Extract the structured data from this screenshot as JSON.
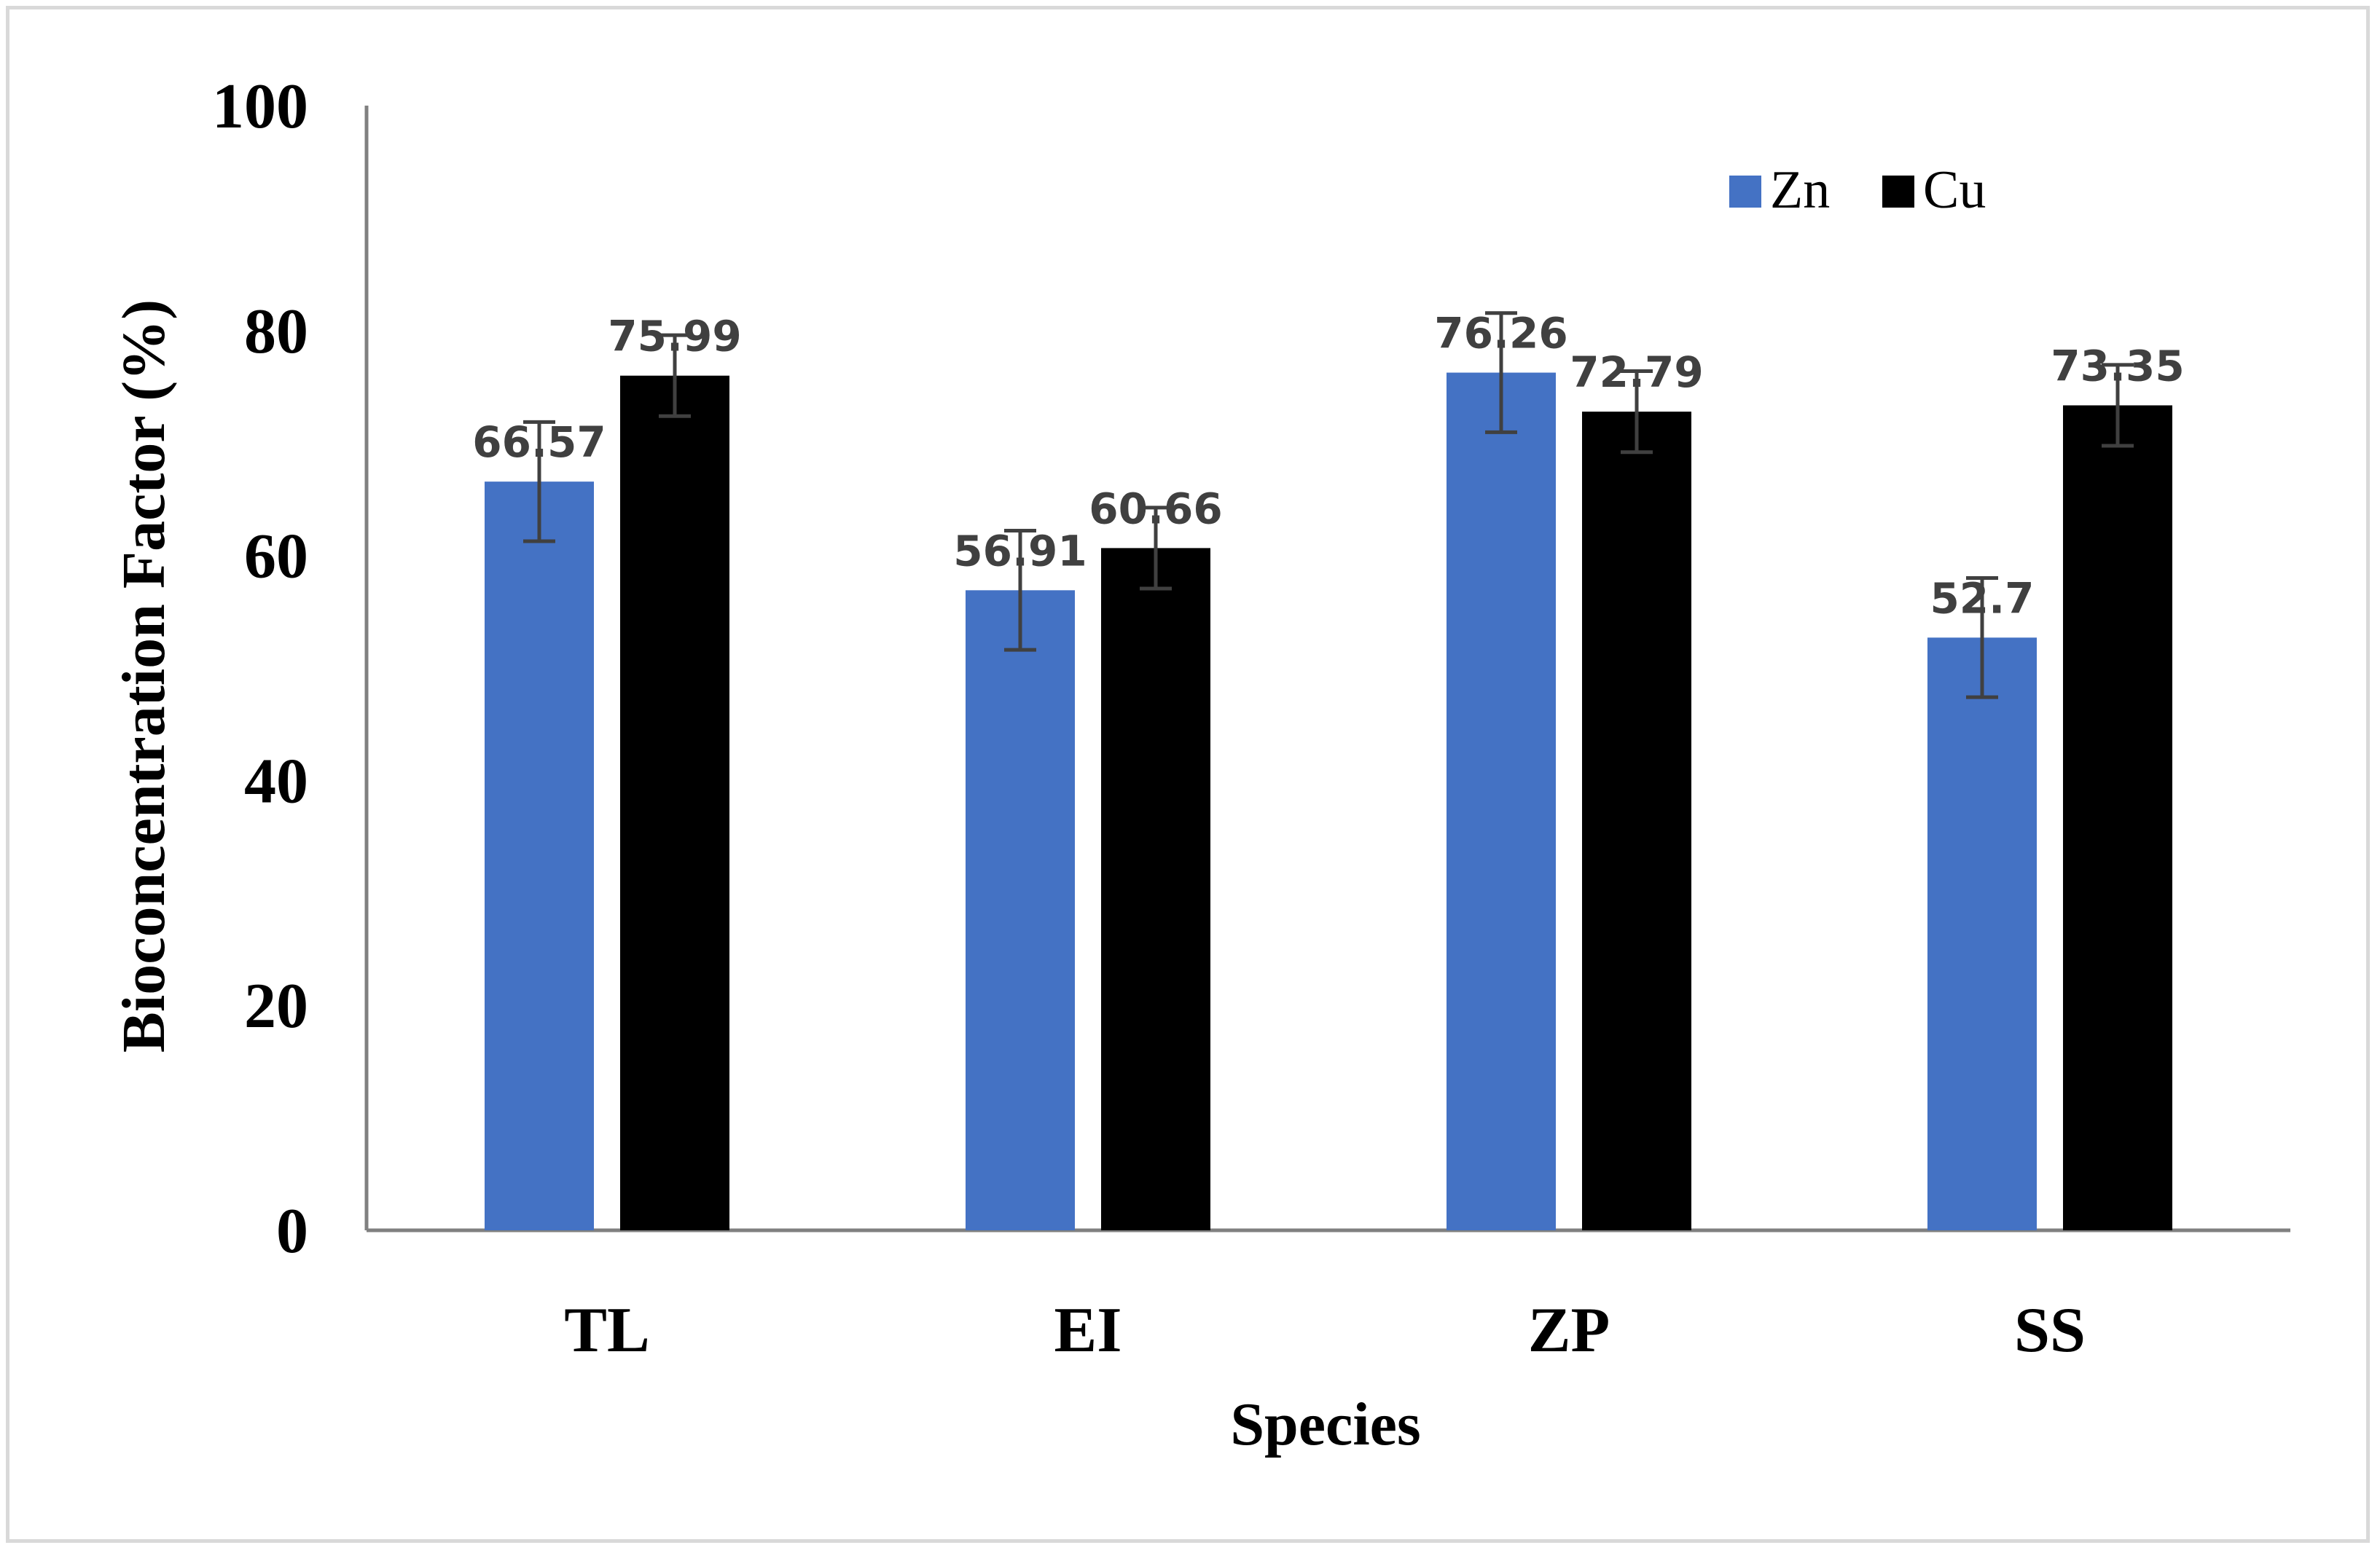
{
  "chart_data": {
    "type": "bar",
    "title": "",
    "xlabel": "Species",
    "ylabel": "Bioconcentration Factor (%)",
    "categories": [
      "TL",
      "EI",
      "ZP",
      "SS"
    ],
    "ylim": [
      0,
      100
    ],
    "yticks": [
      0,
      20,
      40,
      60,
      80,
      100
    ],
    "grid": false,
    "legend_position": "top-right",
    "series": [
      {
        "name": "Zn",
        "color": "#4472c4",
        "values": [
          66.57,
          56.91,
          76.26,
          52.7
        ],
        "labels": [
          "66.57",
          "56.91",
          "76.26",
          "52.7"
        ],
        "error": [
          5.3,
          5.3,
          5.3,
          5.3
        ]
      },
      {
        "name": "Cu",
        "color": "#000000",
        "values": [
          75.99,
          60.66,
          72.79,
          73.35
        ],
        "labels": [
          "75.99",
          "60.66",
          "72.79",
          "73.35"
        ],
        "error": [
          3.6,
          3.6,
          3.6,
          3.6
        ]
      }
    ],
    "axis_color": "#808080",
    "errorbar_color": "#404040"
  }
}
